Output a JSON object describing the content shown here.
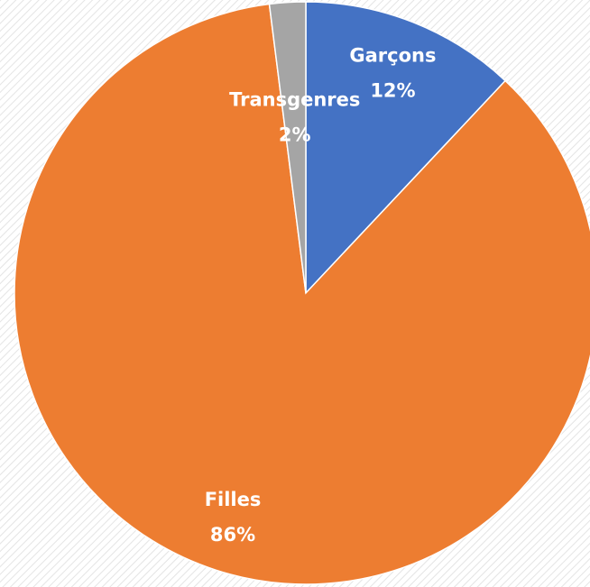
{
  "chart_data": {
    "type": "pie",
    "categories": [
      "Garçons",
      "Filles",
      "Transgenres"
    ],
    "values": [
      12,
      86,
      2
    ],
    "value_labels": [
      "12%",
      "86%",
      "2%"
    ],
    "colors": [
      "#4472c4",
      "#ed7d31",
      "#a5a5a5"
    ]
  }
}
